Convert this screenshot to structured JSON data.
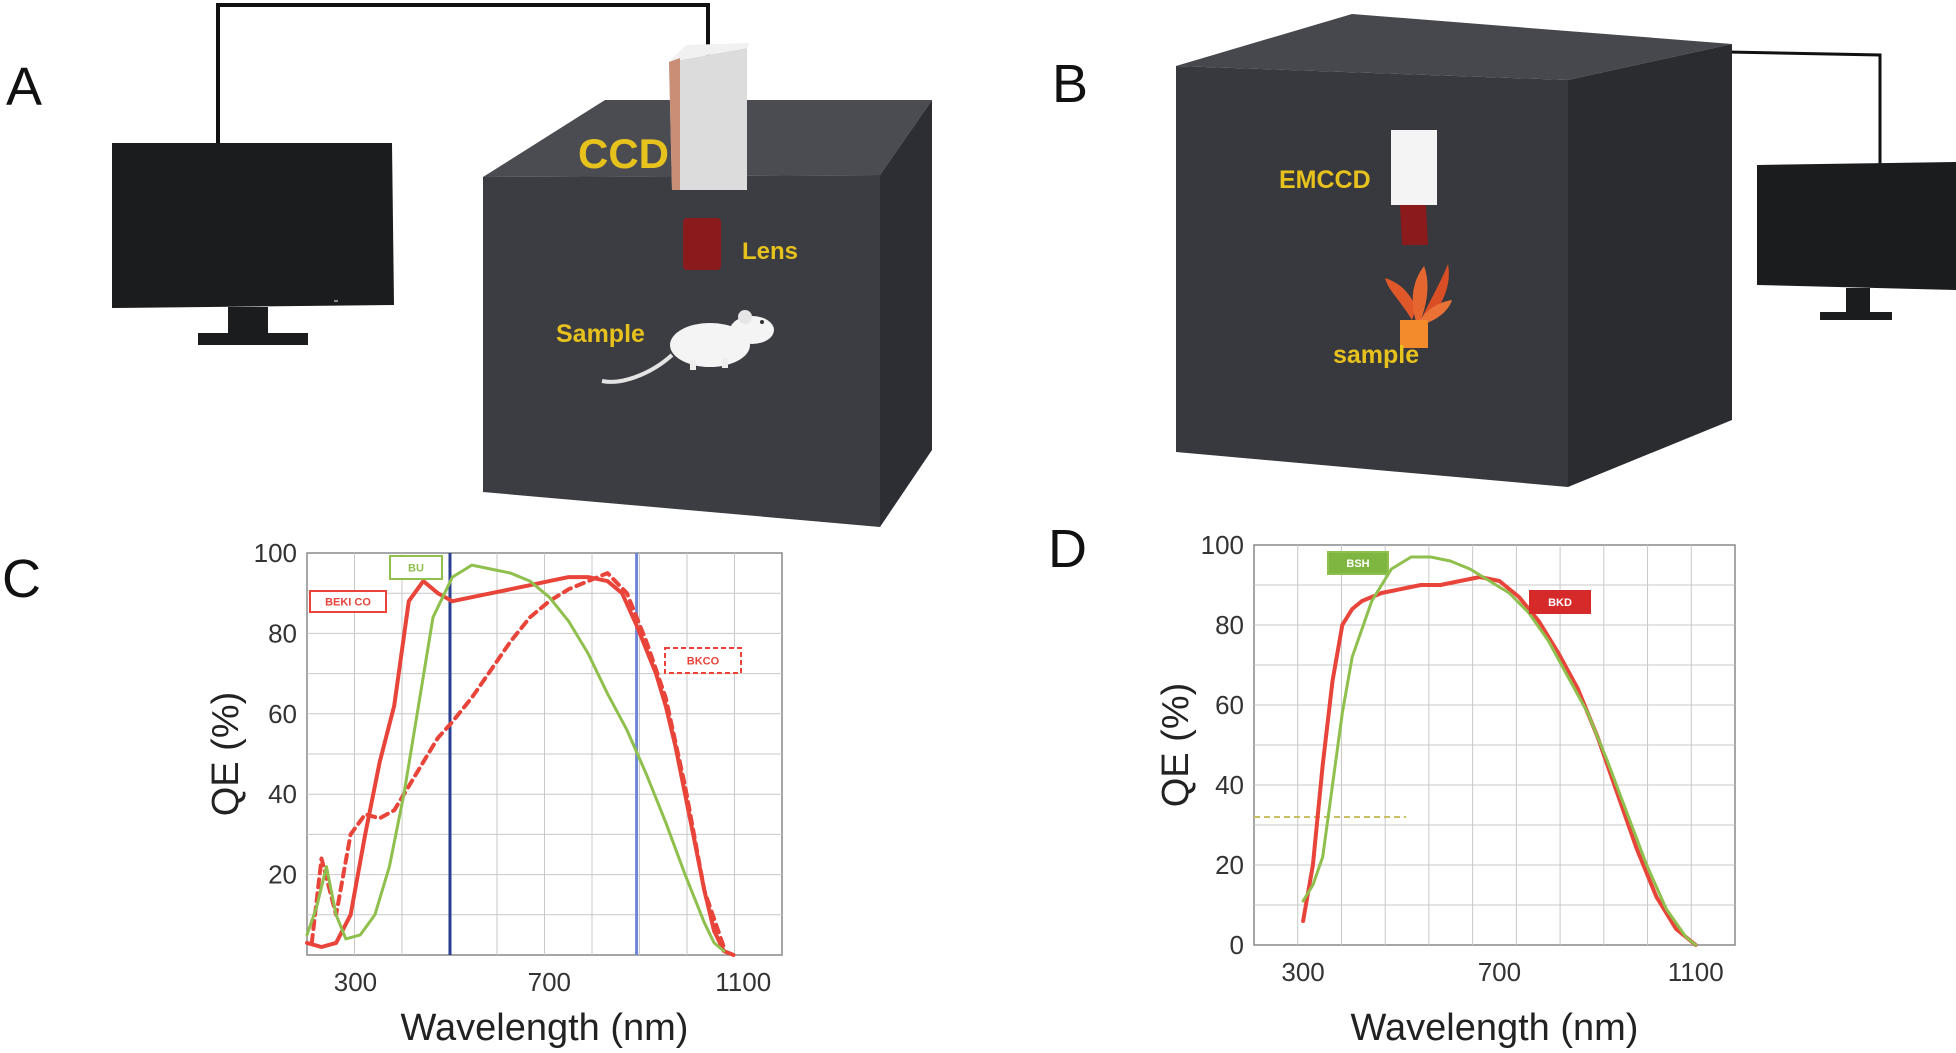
{
  "panels": {
    "a": {
      "letter": "A",
      "ccd_label": "CCD",
      "lens_label": "Lens",
      "sample_label": "Sample"
    },
    "b": {
      "letter": "B",
      "emccd_label": "EMCCD",
      "sample_label": "sample"
    },
    "c": {
      "letter": "C"
    },
    "d": {
      "letter": "D"
    }
  },
  "colors": {
    "box_front": "#3b3d42",
    "box_top": "#4a4c52",
    "box_side": "#2c2e33",
    "label_yellow": "#e8c21c",
    "lens_red": "#8b1a1c",
    "curve_red": "#e8443a",
    "curve_green": "#8fbf4d",
    "band_blue": "#2a3f8f",
    "band_lightblue": "#6f86d6"
  },
  "chart_data": [
    {
      "panel": "C",
      "type": "line",
      "ylabel": "QE (%)",
      "xlabel": "Wavelength (nm)",
      "xlim": [
        200,
        1180
      ],
      "ylim": [
        0,
        100
      ],
      "x_ticks": [
        300,
        700,
        1100
      ],
      "y_ticks": [
        20,
        40,
        60,
        80,
        100
      ],
      "grid": true,
      "vertical_markers": [
        {
          "x": 495,
          "color": "#2a3f8f"
        },
        {
          "x": 880,
          "color": "#6f86d6"
        }
      ],
      "legend_boxes": [
        "BEKI CO",
        "BU",
        "BKCO"
      ],
      "series": [
        {
          "color": "#e8443a",
          "style": "solid",
          "x": [
            200,
            230,
            260,
            290,
            320,
            350,
            380,
            410,
            440,
            470,
            500,
            540,
            580,
            620,
            660,
            700,
            740,
            780,
            820,
            850,
            880,
            900,
            920,
            940,
            960,
            980,
            1000,
            1020,
            1040,
            1060,
            1080
          ],
          "y": [
            3,
            2,
            3,
            10,
            30,
            48,
            62,
            88,
            93,
            90,
            88,
            89,
            90,
            91,
            92,
            93,
            94,
            94,
            93,
            90,
            82,
            76,
            70,
            62,
            52,
            40,
            28,
            16,
            6,
            1,
            0
          ]
        },
        {
          "color": "#e8443a",
          "style": "dashed",
          "x": [
            210,
            230,
            260,
            290,
            320,
            350,
            380,
            410,
            440,
            470,
            500,
            540,
            580,
            620,
            660,
            700,
            740,
            780,
            820,
            860,
            880,
            900,
            940,
            980,
            1020,
            1060
          ],
          "y": [
            3,
            24,
            10,
            30,
            35,
            34,
            36,
            42,
            48,
            54,
            58,
            64,
            71,
            78,
            84,
            88,
            91,
            93,
            95,
            90,
            84,
            78,
            64,
            42,
            16,
            2
          ]
        },
        {
          "color": "#8fbf4d",
          "style": "solid",
          "x": [
            200,
            220,
            240,
            260,
            280,
            310,
            340,
            370,
            400,
            430,
            460,
            500,
            540,
            580,
            620,
            660,
            700,
            740,
            780,
            820,
            860,
            900,
            940,
            980,
            1020,
            1040,
            1060
          ],
          "y": [
            5,
            12,
            22,
            10,
            4,
            5,
            10,
            22,
            40,
            62,
            84,
            94,
            97,
            96,
            95,
            93,
            89,
            83,
            75,
            65,
            56,
            45,
            33,
            20,
            8,
            3,
            1
          ]
        }
      ]
    },
    {
      "panel": "D",
      "type": "line",
      "ylabel": "QE (%)",
      "xlabel": "Wavelength (nm)",
      "xlim": [
        200,
        1180
      ],
      "ylim": [
        0,
        100
      ],
      "x_ticks": [
        300,
        700,
        1100
      ],
      "y_ticks": [
        0,
        20,
        40,
        60,
        80,
        100
      ],
      "grid": true,
      "horizontal_markers": [
        {
          "y": 32,
          "x_from": 200,
          "x_to": 510,
          "color": "#c8c060"
        }
      ],
      "legend_boxes": [
        "BSH",
        "BKD"
      ],
      "series": [
        {
          "color": "#e8443a",
          "style": "solid",
          "x": [
            300,
            320,
            340,
            360,
            380,
            400,
            420,
            460,
            500,
            540,
            580,
            620,
            660,
            700,
            740,
            780,
            820,
            860,
            900,
            940,
            980,
            1020,
            1060,
            1100
          ],
          "y": [
            6,
            20,
            45,
            66,
            80,
            84,
            86,
            88,
            89,
            90,
            90,
            91,
            92,
            91,
            87,
            81,
            73,
            64,
            52,
            38,
            24,
            12,
            4,
            0
          ]
        },
        {
          "color": "#8fbf4d",
          "style": "solid",
          "x": [
            300,
            320,
            340,
            360,
            380,
            400,
            440,
            480,
            520,
            560,
            600,
            640,
            680,
            720,
            760,
            800,
            840,
            880,
            920,
            960,
            1000,
            1040,
            1080,
            1100
          ],
          "y": [
            11,
            15,
            22,
            40,
            58,
            72,
            86,
            94,
            97,
            97,
            96,
            94,
            91,
            88,
            83,
            76,
            67,
            58,
            46,
            33,
            20,
            9,
            2,
            0
          ]
        }
      ]
    }
  ]
}
